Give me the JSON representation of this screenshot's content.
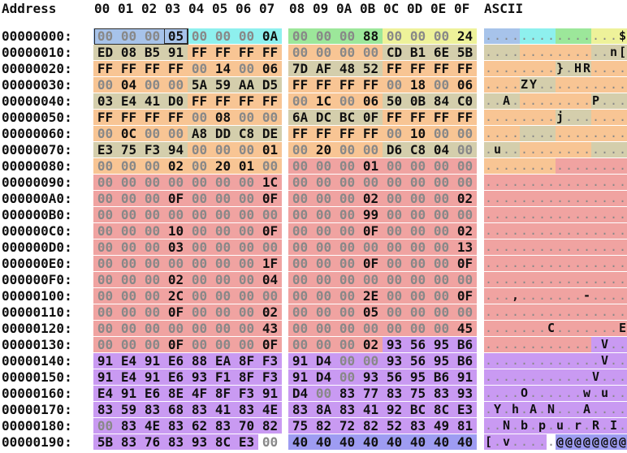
{
  "header": {
    "address_label": "Address",
    "offsets": [
      "00",
      "01",
      "02",
      "03",
      "04",
      "05",
      "06",
      "07",
      "08",
      "09",
      "0A",
      "0B",
      "0C",
      "0D",
      "0E",
      "0F"
    ],
    "ascii_label": "ASCII"
  },
  "colors": {
    "blue": "#a7c3ea",
    "cyan": "#8ef0ee",
    "green": "#9ce79a",
    "yellow": "#eef29a",
    "tan": "#d4ceac",
    "orange": "#f8c594",
    "pink": "#f0a3a1",
    "lightpink": "#f6bcbb",
    "purple": "#c99af2",
    "indigo": "#9e9cf2",
    "grey_text": "#888888"
  },
  "rows": [
    {
      "addr": "00000000:",
      "hex": [
        "00",
        "00",
        "00",
        "05",
        "00",
        "00",
        "00",
        "0A",
        "00",
        "00",
        "00",
        "88",
        "00",
        "00",
        "00",
        "24"
      ],
      "ascii": "...............$",
      "bg": [
        "blue",
        "blue",
        "blue",
        "blue",
        "cyan",
        "cyan",
        "cyan",
        "cyan",
        "green",
        "green",
        "green",
        "green",
        "yellow",
        "yellow",
        "yellow",
        "yellow"
      ]
    },
    {
      "addr": "00000010:",
      "hex": [
        "ED",
        "08",
        "B5",
        "91",
        "FF",
        "FF",
        "FF",
        "FF",
        "00",
        "00",
        "00",
        "00",
        "CD",
        "B1",
        "6E",
        "5B"
      ],
      "ascii": "..............n[",
      "bg": [
        "tan",
        "tan",
        "tan",
        "tan",
        "orange",
        "orange",
        "orange",
        "orange",
        "orange",
        "orange",
        "orange",
        "orange",
        "tan",
        "tan",
        "tan",
        "tan"
      ]
    },
    {
      "addr": "00000020:",
      "hex": [
        "FF",
        "FF",
        "FF",
        "FF",
        "00",
        "14",
        "00",
        "06",
        "7D",
        "AF",
        "48",
        "52",
        "FF",
        "FF",
        "FF",
        "FF"
      ],
      "ascii": "........}.HR....",
      "bg": [
        "orange",
        "orange",
        "orange",
        "orange",
        "orange",
        "orange",
        "orange",
        "orange",
        "tan",
        "tan",
        "tan",
        "tan",
        "orange",
        "orange",
        "orange",
        "orange"
      ]
    },
    {
      "addr": "00000030:",
      "hex": [
        "00",
        "04",
        "00",
        "00",
        "5A",
        "59",
        "AA",
        "D5",
        "FF",
        "FF",
        "FF",
        "FF",
        "00",
        "18",
        "00",
        "06"
      ],
      "ascii": "....ZY..........",
      "bg": [
        "orange",
        "orange",
        "orange",
        "orange",
        "tan",
        "tan",
        "tan",
        "tan",
        "orange",
        "orange",
        "orange",
        "orange",
        "orange",
        "orange",
        "orange",
        "orange"
      ]
    },
    {
      "addr": "00000040:",
      "hex": [
        "03",
        "E4",
        "41",
        "D0",
        "FF",
        "FF",
        "FF",
        "FF",
        "00",
        "1C",
        "00",
        "06",
        "50",
        "0B",
        "84",
        "C0"
      ],
      "ascii": "..A.........P...",
      "bg": [
        "tan",
        "tan",
        "tan",
        "tan",
        "orange",
        "orange",
        "orange",
        "orange",
        "orange",
        "orange",
        "orange",
        "orange",
        "tan",
        "tan",
        "tan",
        "tan"
      ]
    },
    {
      "addr": "00000050:",
      "hex": [
        "FF",
        "FF",
        "FF",
        "FF",
        "00",
        "08",
        "00",
        "00",
        "6A",
        "DC",
        "BC",
        "0F",
        "FF",
        "FF",
        "FF",
        "FF"
      ],
      "ascii": "........j.......",
      "bg": [
        "orange",
        "orange",
        "orange",
        "orange",
        "orange",
        "orange",
        "orange",
        "orange",
        "tan",
        "tan",
        "tan",
        "tan",
        "orange",
        "orange",
        "orange",
        "orange"
      ]
    },
    {
      "addr": "00000060:",
      "hex": [
        "00",
        "0C",
        "00",
        "00",
        "A8",
        "DD",
        "C8",
        "DE",
        "FF",
        "FF",
        "FF",
        "FF",
        "00",
        "10",
        "00",
        "00"
      ],
      "ascii": "................",
      "bg": [
        "orange",
        "orange",
        "orange",
        "orange",
        "tan",
        "tan",
        "tan",
        "tan",
        "orange",
        "orange",
        "orange",
        "orange",
        "orange",
        "orange",
        "orange",
        "orange"
      ]
    },
    {
      "addr": "00000070:",
      "hex": [
        "E3",
        "75",
        "F3",
        "94",
        "00",
        "00",
        "00",
        "01",
        "00",
        "20",
        "00",
        "00",
        "D6",
        "C8",
        "04",
        "00"
      ],
      "ascii": ".u..............",
      "bg": [
        "tan",
        "tan",
        "tan",
        "tan",
        "orange",
        "orange",
        "orange",
        "orange",
        "orange",
        "orange",
        "orange",
        "orange",
        "tan",
        "tan",
        "tan",
        "tan"
      ]
    },
    {
      "addr": "00000080:",
      "hex": [
        "00",
        "00",
        "00",
        "02",
        "00",
        "20",
        "01",
        "00",
        "00",
        "00",
        "00",
        "01",
        "00",
        "00",
        "00",
        "00"
      ],
      "ascii": "................",
      "bg": [
        "orange",
        "orange",
        "orange",
        "orange",
        "orange",
        "orange",
        "orange",
        "orange",
        "pink",
        "pink",
        "pink",
        "pink",
        "pink",
        "pink",
        "pink",
        "pink"
      ]
    },
    {
      "addr": "00000090:",
      "hex": [
        "00",
        "00",
        "00",
        "00",
        "00",
        "00",
        "00",
        "1C",
        "00",
        "00",
        "00",
        "00",
        "00",
        "00",
        "00",
        "00"
      ],
      "ascii": "................",
      "bg": [
        "pink",
        "pink",
        "pink",
        "pink",
        "pink",
        "pink",
        "pink",
        "pink",
        "pink",
        "pink",
        "pink",
        "pink",
        "pink",
        "pink",
        "pink",
        "pink"
      ]
    },
    {
      "addr": "000000A0:",
      "hex": [
        "00",
        "00",
        "00",
        "0F",
        "00",
        "00",
        "00",
        "0F",
        "00",
        "00",
        "00",
        "02",
        "00",
        "00",
        "00",
        "02"
      ],
      "ascii": "................",
      "bg": [
        "pink",
        "pink",
        "pink",
        "pink",
        "pink",
        "pink",
        "pink",
        "pink",
        "pink",
        "pink",
        "pink",
        "pink",
        "pink",
        "pink",
        "pink",
        "pink"
      ]
    },
    {
      "addr": "000000B0:",
      "hex": [
        "00",
        "00",
        "00",
        "00",
        "00",
        "00",
        "00",
        "00",
        "00",
        "00",
        "00",
        "99",
        "00",
        "00",
        "00",
        "00"
      ],
      "ascii": "................",
      "bg": [
        "pink",
        "pink",
        "pink",
        "pink",
        "pink",
        "pink",
        "pink",
        "pink",
        "pink",
        "pink",
        "pink",
        "pink",
        "pink",
        "pink",
        "pink",
        "pink"
      ]
    },
    {
      "addr": "000000C0:",
      "hex": [
        "00",
        "00",
        "00",
        "10",
        "00",
        "00",
        "00",
        "0F",
        "00",
        "00",
        "00",
        "0F",
        "00",
        "00",
        "00",
        "02"
      ],
      "ascii": "................",
      "bg": [
        "pink",
        "pink",
        "pink",
        "pink",
        "pink",
        "pink",
        "pink",
        "pink",
        "pink",
        "pink",
        "pink",
        "pink",
        "pink",
        "pink",
        "pink",
        "pink"
      ]
    },
    {
      "addr": "000000D0:",
      "hex": [
        "00",
        "00",
        "00",
        "03",
        "00",
        "00",
        "00",
        "00",
        "00",
        "00",
        "00",
        "00",
        "00",
        "00",
        "00",
        "13"
      ],
      "ascii": "................",
      "bg": [
        "pink",
        "pink",
        "pink",
        "pink",
        "pink",
        "pink",
        "pink",
        "pink",
        "pink",
        "pink",
        "pink",
        "pink",
        "pink",
        "pink",
        "pink",
        "pink"
      ]
    },
    {
      "addr": "000000E0:",
      "hex": [
        "00",
        "00",
        "00",
        "00",
        "00",
        "00",
        "00",
        "1F",
        "00",
        "00",
        "00",
        "0F",
        "00",
        "00",
        "00",
        "0F"
      ],
      "ascii": "................",
      "bg": [
        "pink",
        "pink",
        "pink",
        "pink",
        "pink",
        "pink",
        "pink",
        "pink",
        "pink",
        "pink",
        "pink",
        "pink",
        "pink",
        "pink",
        "pink",
        "pink"
      ]
    },
    {
      "addr": "000000F0:",
      "hex": [
        "00",
        "00",
        "00",
        "02",
        "00",
        "00",
        "00",
        "04",
        "00",
        "00",
        "00",
        "00",
        "00",
        "00",
        "00",
        "00"
      ],
      "ascii": "................",
      "bg": [
        "pink",
        "pink",
        "pink",
        "pink",
        "pink",
        "pink",
        "pink",
        "pink",
        "pink",
        "pink",
        "pink",
        "pink",
        "pink",
        "pink",
        "pink",
        "pink"
      ]
    },
    {
      "addr": "00000100:",
      "hex": [
        "00",
        "00",
        "00",
        "2C",
        "00",
        "00",
        "00",
        "00",
        "00",
        "00",
        "00",
        "2E",
        "00",
        "00",
        "00",
        "0F"
      ],
      "ascii": "...,.......-....",
      "bg": [
        "pink",
        "pink",
        "pink",
        "pink",
        "pink",
        "pink",
        "pink",
        "pink",
        "pink",
        "pink",
        "pink",
        "pink",
        "pink",
        "pink",
        "pink",
        "pink"
      ]
    },
    {
      "addr": "00000110:",
      "hex": [
        "00",
        "00",
        "00",
        "0F",
        "00",
        "00",
        "00",
        "02",
        "00",
        "00",
        "00",
        "05",
        "00",
        "00",
        "00",
        "00"
      ],
      "ascii": "................",
      "bg": [
        "pink",
        "pink",
        "pink",
        "pink",
        "pink",
        "pink",
        "pink",
        "pink",
        "pink",
        "pink",
        "pink",
        "pink",
        "pink",
        "pink",
        "pink",
        "pink"
      ]
    },
    {
      "addr": "00000120:",
      "hex": [
        "00",
        "00",
        "00",
        "00",
        "00",
        "00",
        "00",
        "43",
        "00",
        "00",
        "00",
        "00",
        "00",
        "00",
        "00",
        "45"
      ],
      "ascii": ".......C.......E",
      "bg": [
        "pink",
        "pink",
        "pink",
        "pink",
        "pink",
        "pink",
        "pink",
        "pink",
        "pink",
        "pink",
        "pink",
        "pink",
        "pink",
        "pink",
        "pink",
        "pink"
      ]
    },
    {
      "addr": "00000130:",
      "hex": [
        "00",
        "00",
        "00",
        "0F",
        "00",
        "00",
        "00",
        "0F",
        "00",
        "00",
        "00",
        "02",
        "93",
        "56",
        "95",
        "B6"
      ],
      "ascii": ".............V..",
      "bg": [
        "pink",
        "pink",
        "pink",
        "pink",
        "pink",
        "pink",
        "pink",
        "pink",
        "pink",
        "pink",
        "pink",
        "pink",
        "purple",
        "purple",
        "purple",
        "purple"
      ]
    },
    {
      "addr": "00000140:",
      "hex": [
        "91",
        "E4",
        "91",
        "E6",
        "88",
        "EA",
        "8F",
        "F3",
        "91",
        "D4",
        "00",
        "00",
        "93",
        "56",
        "95",
        "B6"
      ],
      "ascii": ".............V..",
      "bg": [
        "purple",
        "purple",
        "purple",
        "purple",
        "purple",
        "purple",
        "purple",
        "purple",
        "purple",
        "purple",
        "purple",
        "purple",
        "purple",
        "purple",
        "purple",
        "purple"
      ]
    },
    {
      "addr": "00000150:",
      "hex": [
        "91",
        "E4",
        "91",
        "E6",
        "93",
        "F1",
        "8F",
        "F3",
        "91",
        "D4",
        "00",
        "93",
        "56",
        "95",
        "B6",
        "91"
      ],
      "ascii": "............V...",
      "bg": [
        "purple",
        "purple",
        "purple",
        "purple",
        "purple",
        "purple",
        "purple",
        "purple",
        "purple",
        "purple",
        "purple",
        "purple",
        "purple",
        "purple",
        "purple",
        "purple"
      ]
    },
    {
      "addr": "00000160:",
      "hex": [
        "E4",
        "91",
        "E6",
        "8E",
        "4F",
        "8F",
        "F3",
        "91",
        "D4",
        "00",
        "83",
        "77",
        "83",
        "75",
        "83",
        "93"
      ],
      "ascii": "....O......w.u..",
      "bg": [
        "purple",
        "purple",
        "purple",
        "purple",
        "purple",
        "purple",
        "purple",
        "purple",
        "purple",
        "purple",
        "purple",
        "purple",
        "purple",
        "purple",
        "purple",
        "purple"
      ]
    },
    {
      "addr": "00000170:",
      "hex": [
        "83",
        "59",
        "83",
        "68",
        "83",
        "41",
        "83",
        "4E",
        "83",
        "8A",
        "83",
        "41",
        "92",
        "BC",
        "8C",
        "E3"
      ],
      "ascii": ".Y.h.A.N...A....",
      "bg": [
        "purple",
        "purple",
        "purple",
        "purple",
        "purple",
        "purple",
        "purple",
        "purple",
        "purple",
        "purple",
        "purple",
        "purple",
        "purple",
        "purple",
        "purple",
        "purple"
      ]
    },
    {
      "addr": "00000180:",
      "hex": [
        "00",
        "83",
        "4E",
        "83",
        "62",
        "83",
        "70",
        "82",
        "75",
        "82",
        "72",
        "82",
        "52",
        "83",
        "49",
        "81"
      ],
      "ascii": "..N.b.p.u.r.R.I.",
      "bg": [
        "purple",
        "purple",
        "purple",
        "purple",
        "purple",
        "purple",
        "purple",
        "purple",
        "purple",
        "purple",
        "purple",
        "purple",
        "purple",
        "purple",
        "purple",
        "purple"
      ]
    },
    {
      "addr": "00000190:",
      "hex": [
        "5B",
        "83",
        "76",
        "83",
        "93",
        "8C",
        "E3",
        "00",
        "40",
        "40",
        "40",
        "40",
        "40",
        "40",
        "40",
        "40"
      ],
      "ascii": "[.v.....@@@@@@@@",
      "bg": [
        "purple",
        "purple",
        "purple",
        "purple",
        "purple",
        "purple",
        "purple",
        "white",
        "indigo",
        "indigo",
        "indigo",
        "indigo",
        "indigo",
        "indigo",
        "indigo",
        "indigo"
      ]
    }
  ]
}
